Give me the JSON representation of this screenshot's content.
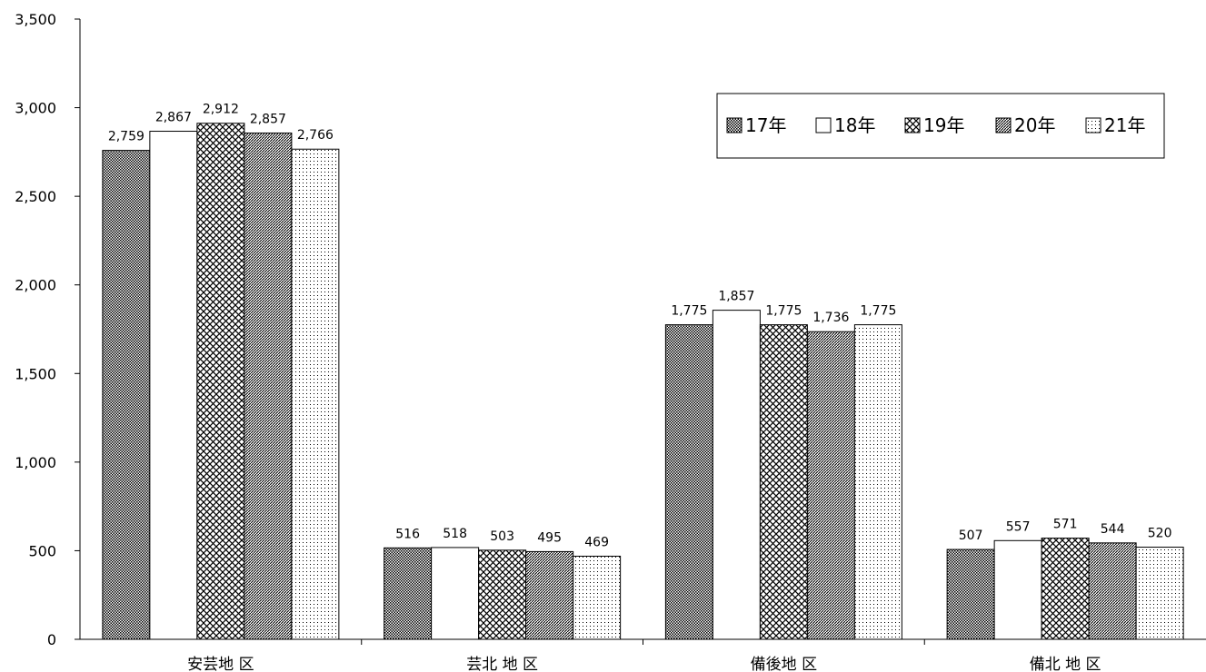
{
  "chart_data": {
    "type": "bar",
    "categories": [
      "安芸地 区",
      "芸北 地 区",
      "備後地 区",
      "備北 地 区"
    ],
    "series": [
      {
        "name": "17年",
        "values": [
          2759,
          516,
          1775,
          507
        ],
        "pattern": "dense-dots"
      },
      {
        "name": "18年",
        "values": [
          2867,
          518,
          1857,
          557
        ],
        "pattern": "white"
      },
      {
        "name": "19年",
        "values": [
          2912,
          503,
          1775,
          571
        ],
        "pattern": "crosshatch"
      },
      {
        "name": "20年",
        "values": [
          2857,
          495,
          1736,
          544
        ],
        "pattern": "diagonal"
      },
      {
        "name": "21年",
        "values": [
          2766,
          469,
          1775,
          520
        ],
        "pattern": "sparse-dots"
      }
    ],
    "data_labels": [
      [
        "2,759",
        "516",
        "1,775",
        "507"
      ],
      [
        "2,867",
        "518",
        "1,857",
        "557"
      ],
      [
        "2,912",
        "503",
        "1,775",
        "571"
      ],
      [
        "2,857",
        "495",
        "1,736",
        "544"
      ],
      [
        "2,766",
        "469",
        "1,775",
        "520"
      ]
    ],
    "ylim": [
      0,
      3500
    ],
    "yticks": [
      0,
      500,
      1000,
      1500,
      2000,
      2500,
      3000,
      3500
    ],
    "ytick_labels": [
      "0",
      "500",
      "1,000",
      "1,500",
      "2,000",
      "2,500",
      "3,000",
      "3,500"
    ],
    "legend_placement": "top-right",
    "grid": false,
    "colors": {
      "stroke": "#000000",
      "background": "#ffffff"
    }
  }
}
